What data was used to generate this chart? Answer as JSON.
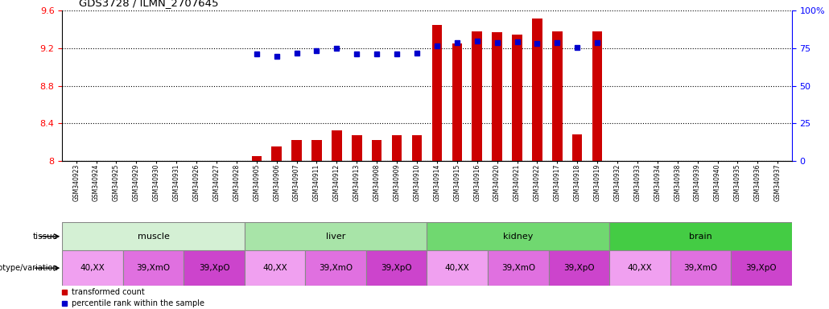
{
  "title": "GDS3728 / ILMN_2707645",
  "samples": [
    "GSM340923",
    "GSM340924",
    "GSM340925",
    "GSM340929",
    "GSM340930",
    "GSM340931",
    "GSM340926",
    "GSM340927",
    "GSM340928",
    "GSM340905",
    "GSM340906",
    "GSM340907",
    "GSM340911",
    "GSM340912",
    "GSM340913",
    "GSM340908",
    "GSM340909",
    "GSM340910",
    "GSM340914",
    "GSM340915",
    "GSM340916",
    "GSM340920",
    "GSM340921",
    "GSM340922",
    "GSM340917",
    "GSM340918",
    "GSM340919",
    "GSM340932",
    "GSM340933",
    "GSM340934",
    "GSM340938",
    "GSM340939",
    "GSM340940",
    "GSM340935",
    "GSM340936",
    "GSM340937"
  ],
  "bar_values": [
    8.0,
    8.0,
    8.0,
    8.0,
    8.0,
    8.0,
    8.0,
    8.0,
    8.0,
    8.05,
    8.15,
    8.22,
    8.22,
    8.32,
    8.27,
    8.22,
    8.27,
    8.27,
    9.45,
    9.25,
    9.38,
    9.37,
    9.35,
    9.52,
    9.38,
    8.28,
    9.38,
    8.0,
    8.0,
    8.0,
    8.0,
    8.0,
    8.0,
    8.0,
    8.0,
    8.0
  ],
  "percentile_values": [
    null,
    null,
    null,
    null,
    null,
    null,
    null,
    null,
    null,
    9.14,
    9.11,
    9.15,
    9.17,
    9.2,
    9.14,
    9.14,
    9.14,
    9.15,
    9.23,
    9.26,
    9.28,
    9.26,
    9.27,
    9.25,
    9.26,
    9.21,
    9.26,
    null,
    null,
    null,
    null,
    null,
    null,
    null,
    null,
    null
  ],
  "ylim_left": [
    8.0,
    9.6
  ],
  "ylim_right": [
    0,
    100
  ],
  "yticks_left": [
    8.0,
    8.4,
    8.8,
    9.2,
    9.6
  ],
  "yticks_right": [
    0,
    25,
    50,
    75,
    100
  ],
  "tissues": [
    {
      "label": "muscle",
      "start": 0,
      "end": 9,
      "color": "#d4f0d4"
    },
    {
      "label": "liver",
      "start": 9,
      "end": 18,
      "color": "#a8e4a8"
    },
    {
      "label": "kidney",
      "start": 18,
      "end": 27,
      "color": "#70d870"
    },
    {
      "label": "brain",
      "start": 27,
      "end": 36,
      "color": "#44cc44"
    }
  ],
  "genotypes": [
    {
      "label": "40,XX",
      "start": 0,
      "end": 3,
      "color": "#f0a0f0"
    },
    {
      "label": "39,XmO",
      "start": 3,
      "end": 6,
      "color": "#e070e0"
    },
    {
      "label": "39,XpO",
      "start": 6,
      "end": 9,
      "color": "#cc44cc"
    },
    {
      "label": "40,XX",
      "start": 9,
      "end": 12,
      "color": "#f0a0f0"
    },
    {
      "label": "39,XmO",
      "start": 12,
      "end": 15,
      "color": "#e070e0"
    },
    {
      "label": "39,XpO",
      "start": 15,
      "end": 18,
      "color": "#cc44cc"
    },
    {
      "label": "40,XX",
      "start": 18,
      "end": 21,
      "color": "#f0a0f0"
    },
    {
      "label": "39,XmO",
      "start": 21,
      "end": 24,
      "color": "#e070e0"
    },
    {
      "label": "39,XpO",
      "start": 24,
      "end": 27,
      "color": "#cc44cc"
    },
    {
      "label": "40,XX",
      "start": 27,
      "end": 30,
      "color": "#f0a0f0"
    },
    {
      "label": "39,XmO",
      "start": 30,
      "end": 33,
      "color": "#e070e0"
    },
    {
      "label": "39,XpO",
      "start": 33,
      "end": 36,
      "color": "#cc44cc"
    }
  ],
  "bar_color": "#cc0000",
  "percentile_color": "#0000cc",
  "background_color": "#ffffff",
  "legend_items": [
    {
      "label": "transformed count",
      "color": "#cc0000"
    },
    {
      "label": "percentile rank within the sample",
      "color": "#0000cc"
    }
  ],
  "tissue_row_label": "tissue",
  "geno_row_label": "genotype/variation"
}
